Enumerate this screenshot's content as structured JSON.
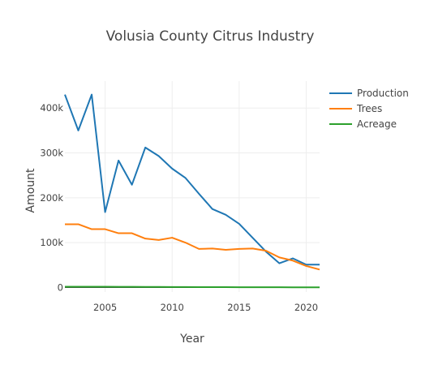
{
  "chart_data": {
    "type": "line",
    "title": "Volusia County Citrus Industry",
    "xlabel": "Year",
    "ylabel": "Amount",
    "xlim": [
      2002,
      2021
    ],
    "ylim": [
      -10000,
      460000
    ],
    "x_ticks": [
      2005,
      2010,
      2015,
      2020
    ],
    "y_ticks": [
      0,
      100000,
      200000,
      300000,
      400000
    ],
    "y_tick_labels": [
      "0",
      "100k",
      "200k",
      "300k",
      "400k"
    ],
    "grid": true,
    "legend_position": "right",
    "x": [
      2002,
      2003,
      2004,
      2005,
      2006,
      2007,
      2008,
      2009,
      2010,
      2011,
      2012,
      2013,
      2014,
      2015,
      2016,
      2017,
      2018,
      2019,
      2020,
      2021
    ],
    "series": [
      {
        "name": "Production",
        "color": "#1f77b4",
        "values": [
          430000,
          350000,
          430000,
          168000,
          283000,
          229000,
          312000,
          293000,
          265000,
          244000,
          209000,
          175000,
          162000,
          142000,
          111000,
          80000,
          54000,
          65000,
          51000,
          51000
        ]
      },
      {
        "name": "Trees",
        "color": "#ff7f0e",
        "values": [
          141000,
          141000,
          130000,
          130000,
          121000,
          121000,
          109000,
          106000,
          111000,
          100000,
          86000,
          87000,
          84000,
          86000,
          87000,
          82000,
          67000,
          60000,
          48000,
          40000
        ]
      },
      {
        "name": "Acreage",
        "color": "#2ca02c",
        "values": [
          1800,
          1750,
          1700,
          1650,
          1550,
          1450,
          1350,
          1250,
          1150,
          1050,
          950,
          850,
          780,
          720,
          660,
          600,
          540,
          480,
          420,
          380
        ]
      }
    ]
  }
}
